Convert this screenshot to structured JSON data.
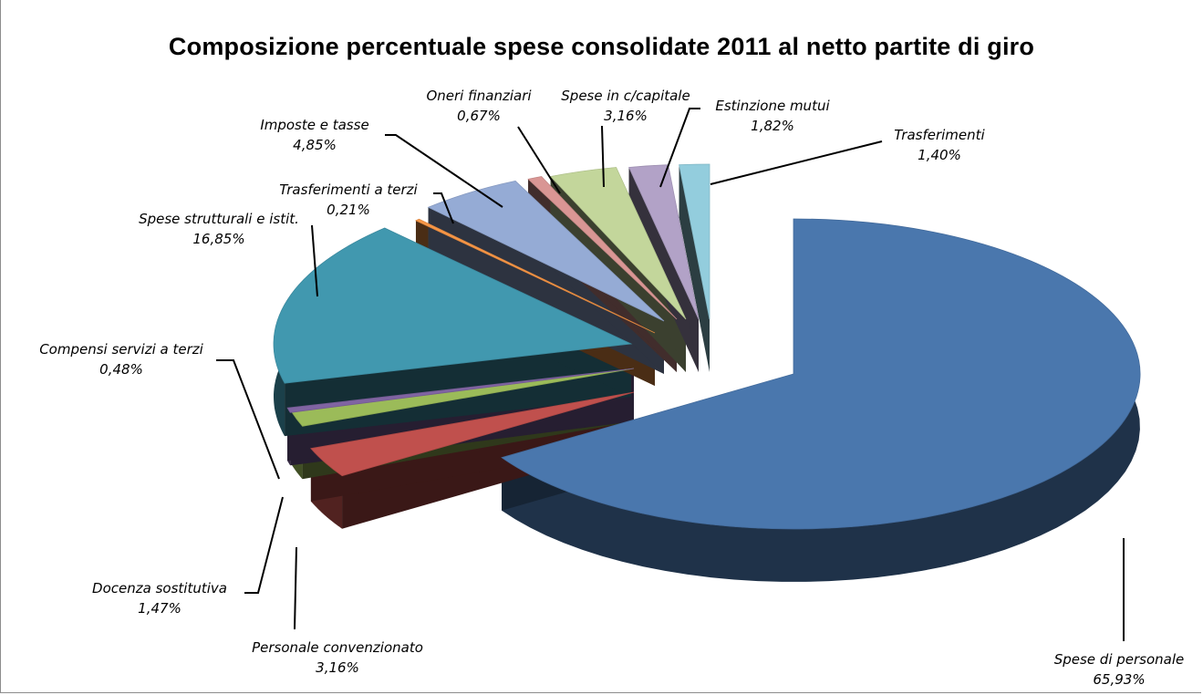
{
  "chart_data": {
    "type": "pie",
    "title": "Composizione percentuale spese consolidate 2011 al netto partite di giro",
    "slices": [
      {
        "label": "Spese di personale",
        "value_text": "65,93%",
        "value": 65.93,
        "color": "#4a77ad"
      },
      {
        "label": "Personale convenzionato",
        "value_text": "3,16%",
        "value": 3.16,
        "color": "#c0504d"
      },
      {
        "label": "Docenza sostitutiva",
        "value_text": "1,47%",
        "value": 1.47,
        "color": "#9bbb59"
      },
      {
        "label": "Compensi servizi a terzi",
        "value_text": "0,48%",
        "value": 0.48,
        "color": "#8064a2"
      },
      {
        "label": "Spese strutturali e istit.",
        "value_text": "16,85%",
        "value": 16.85,
        "color": "#4198af"
      },
      {
        "label": "Trasferimenti a terzi",
        "value_text": "0,21%",
        "value": 0.21,
        "color": "#f79646"
      },
      {
        "label": "Imposte e tasse",
        "value_text": "4,85%",
        "value": 4.85,
        "color": "#95abd5"
      },
      {
        "label": "Oneri finanziari",
        "value_text": "0,67%",
        "value": 0.67,
        "color": "#d99694"
      },
      {
        "label": "Spese in c/capitale",
        "value_text": "3,16%",
        "value": 3.16,
        "color": "#c3d69b"
      },
      {
        "label": "Estinzione mutui",
        "value_text": "1,82%",
        "value": 1.82,
        "color": "#b2a2c7"
      },
      {
        "label": "Trasferimenti",
        "value_text": "1,40%",
        "value": 1.4,
        "color": "#93cddd"
      }
    ]
  }
}
